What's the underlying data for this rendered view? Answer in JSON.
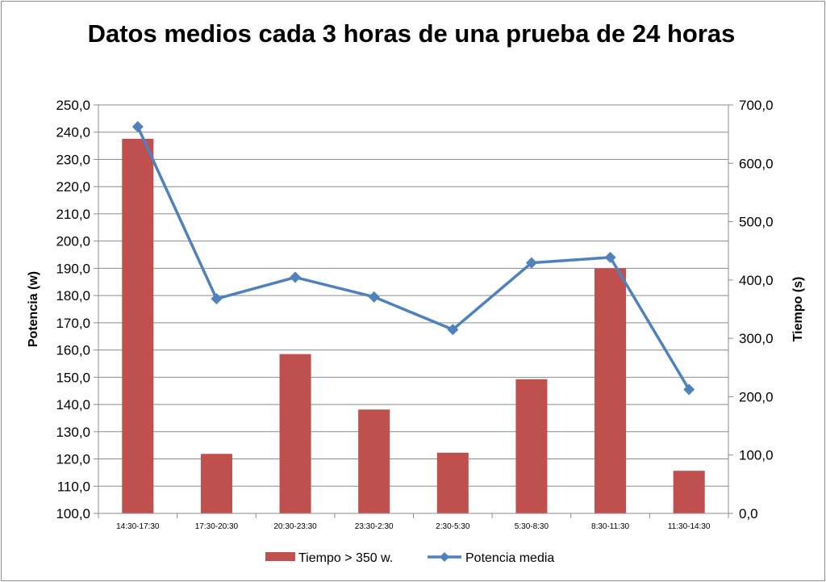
{
  "chart_data": {
    "type": "bar+line",
    "title": "Datos medios cada 3 horas de una prueba de 24 horas",
    "categories": [
      "14:30-17:30",
      "17:30-20:30",
      "20:30-23:30",
      "23:30-2:30",
      "2:30-5:30",
      "5:30-8:30",
      "8:30-11:30",
      "11:30-14:30"
    ],
    "series": [
      {
        "name": "Tiempo > 350 w.",
        "type": "bar",
        "axis": "right",
        "color": "#c0504d",
        "values": [
          642,
          102,
          273,
          178,
          104,
          230,
          420,
          73
        ]
      },
      {
        "name": "Potencia media",
        "type": "line",
        "axis": "left",
        "color": "#4f81bd",
        "marker": "diamond",
        "values": [
          242.0,
          178.8,
          186.7,
          179.5,
          167.5,
          192.0,
          194.0,
          145.5
        ]
      }
    ],
    "y_left": {
      "label": "Potencia (w)",
      "min": 100,
      "max": 250,
      "step": 10,
      "ticks": [
        "100,0",
        "110,0",
        "120,0",
        "130,0",
        "140,0",
        "150,0",
        "160,0",
        "170,0",
        "180,0",
        "190,0",
        "200,0",
        "210,0",
        "220,0",
        "230,0",
        "240,0",
        "250,0"
      ]
    },
    "y_right": {
      "label": "Tiempo (s)",
      "min": 0,
      "max": 700,
      "step": 100,
      "ticks": [
        "0,0",
        "100,0",
        "200,0",
        "300,0",
        "400,0",
        "500,0",
        "600,0",
        "700,0"
      ]
    },
    "grid": true,
    "legend": "bottom"
  }
}
